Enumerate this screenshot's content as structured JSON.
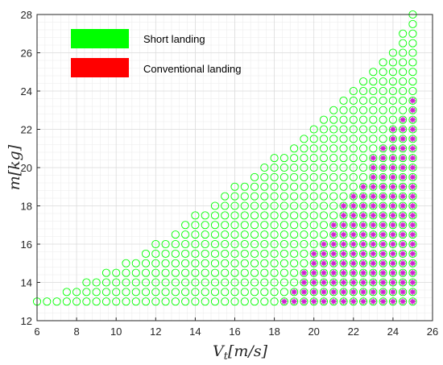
{
  "chart_data": {
    "type": "scatter",
    "xlabel": "V_t[m/s]",
    "ylabel": "m[kg]",
    "xlim": [
      6,
      26
    ],
    "ylim": [
      12,
      28
    ],
    "xticks": [
      6,
      8,
      10,
      12,
      14,
      16,
      18,
      20,
      22,
      24,
      26
    ],
    "yticks": [
      12,
      14,
      16,
      18,
      20,
      22,
      24,
      26,
      28
    ],
    "grid": "minor",
    "legend_position": "top-left",
    "point_grid": {
      "x_step": 0.5,
      "y_step": 0.5,
      "x_max": 25,
      "y_min": 13
    },
    "series": [
      {
        "name": "Short landing",
        "color": "#00ff00",
        "marker": "open-circle",
        "boundary": {
          "description": "for each mass m, points from V_t_min(m) to 25 in 0.5 steps",
          "m": [
            13,
            13.5,
            14,
            14.5,
            15,
            15.5,
            16,
            16.5,
            17,
            17.5,
            18,
            18.5,
            19,
            19.5,
            20,
            20.5,
            21,
            21.5,
            22,
            22.5,
            23,
            23.5,
            24,
            24.5,
            25,
            25.5,
            26,
            26.5,
            27,
            27.5,
            28
          ],
          "v_min": [
            6,
            7.5,
            8.5,
            9.5,
            10.5,
            11.5,
            12,
            13,
            13.5,
            14,
            15,
            15.5,
            16,
            17,
            17.5,
            18,
            19,
            19.5,
            20,
            20.5,
            21,
            21.5,
            22,
            22.5,
            23,
            23.5,
            24,
            24.5,
            24.5,
            25,
            25
          ]
        }
      },
      {
        "name": "Conventional landing",
        "color": "#ff0000",
        "marker": "filled-star",
        "marker_color": "#d020d0",
        "boundary": {
          "description": "for each mass m, points from V_t_min(m) to 25 in 0.5 steps",
          "m": [
            13,
            13.5,
            14,
            14.5,
            15,
            15.5,
            16,
            16.5,
            17,
            17.5,
            18,
            18.5,
            19,
            19.5,
            20,
            20.5,
            21,
            21.5,
            22,
            22.5,
            23,
            23.5
          ],
          "v_min": [
            18.5,
            19,
            19.5,
            19.5,
            20,
            20,
            20.5,
            21,
            21,
            21.5,
            21.5,
            22,
            22.5,
            23,
            23,
            23,
            23.5,
            24,
            24,
            24.5,
            25,
            25
          ]
        }
      }
    ]
  }
}
